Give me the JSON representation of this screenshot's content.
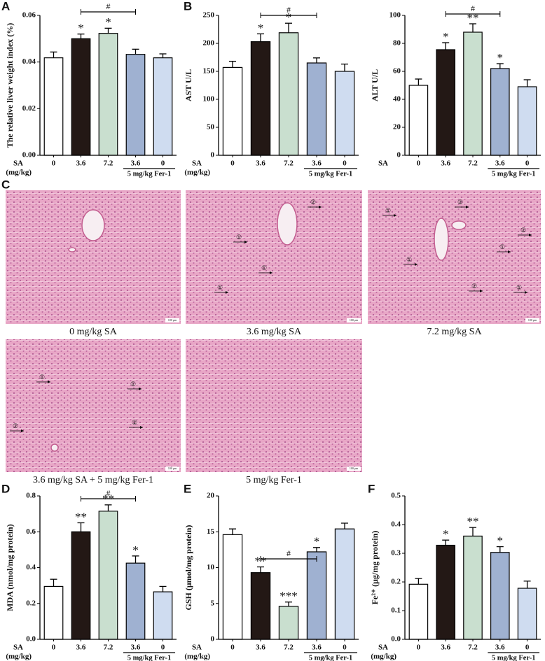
{
  "chart_data": [
    {
      "type": "bar",
      "panel": "A",
      "ylabel": "The relative liver weight index (%)",
      "x_label": "SA",
      "x_unit": "(mg/kg)",
      "categories": [
        "0",
        "3.6",
        "7.2",
        "3.6",
        "0"
      ],
      "values": [
        0.0418,
        0.05,
        0.0523,
        0.0433,
        0.0418
      ],
      "errors": [
        0.0025,
        0.002,
        0.0022,
        0.0022,
        0.0017
      ],
      "colors": [
        "#ffffff",
        "#231815",
        "#c9dfcf",
        "#9fb1d1",
        "#cfdcf0"
      ],
      "significance": [
        null,
        "*",
        "*",
        null,
        null
      ],
      "bracket": {
        "label": "#",
        "from": 1,
        "to": 3
      },
      "group": {
        "label": "5 mg/kg Fer-1",
        "from": 3,
        "to": 4
      },
      "ylim": [
        0,
        0.06
      ],
      "yticks": [
        {
          "value": 0,
          "label": "0.00"
        },
        {
          "value": 0.02,
          "label": "0.02"
        },
        {
          "value": 0.04,
          "label": "0.04"
        },
        {
          "value": 0.06,
          "label": "0.06"
        }
      ]
    },
    {
      "type": "bar",
      "panel": "B",
      "ylabel": "AST U/L",
      "x_label": "SA",
      "x_unit": "(mg/kg)",
      "categories": [
        "0",
        "3.6",
        "7.2",
        "3.6",
        "0"
      ],
      "values": [
        157,
        203,
        219,
        165,
        150
      ],
      "errors": [
        11,
        14,
        17,
        9,
        13
      ],
      "colors": [
        "#ffffff",
        "#231815",
        "#c9dfcf",
        "#9fb1d1",
        "#cfdcf0"
      ],
      "significance": [
        null,
        "*",
        "*",
        null,
        null
      ],
      "bracket": {
        "label": "#",
        "from": 1,
        "to": 3
      },
      "group": {
        "label": "5 mg/kg Fer-1",
        "from": 3,
        "to": 4
      },
      "ylim": [
        0,
        250
      ],
      "yticks": [
        0,
        50,
        100,
        150,
        200,
        250
      ]
    },
    {
      "type": "bar",
      "ylabel": "ALT U/L",
      "x_label": "SA",
      "categories": [
        "0",
        "3.6",
        "7.2",
        "3.6",
        "0"
      ],
      "values": [
        50,
        75.5,
        88,
        62,
        49
      ],
      "errors": [
        4.5,
        5,
        6,
        3.5,
        5
      ],
      "colors": [
        "#ffffff",
        "#231815",
        "#c9dfcf",
        "#9fb1d1",
        "#cfdcf0"
      ],
      "significance": [
        null,
        "*",
        "**",
        "*",
        null
      ],
      "bracket": {
        "label": "#",
        "from": 1,
        "to": 3
      },
      "group": {
        "label": "5 mg/kg Fer-1",
        "from": 3,
        "to": 4
      },
      "ylim": [
        0,
        100
      ],
      "yticks": [
        0,
        20,
        40,
        60,
        80,
        100
      ]
    },
    {
      "type": "bar",
      "panel": "D",
      "ylabel": "MDA (nmol/mg protein)",
      "x_label": "SA",
      "x_unit": "(mg/kg)",
      "categories": [
        "0",
        "3.6",
        "7.2",
        "3.6",
        "0"
      ],
      "values": [
        0.295,
        0.6,
        0.715,
        0.425,
        0.265
      ],
      "errors": [
        0.04,
        0.05,
        0.035,
        0.04,
        0.03
      ],
      "colors": [
        "#ffffff",
        "#231815",
        "#c9dfcf",
        "#9fb1d1",
        "#cfdcf0"
      ],
      "significance": [
        null,
        "**",
        "**",
        "*",
        null
      ],
      "bracket": {
        "label": "#",
        "from": 1,
        "to": 3
      },
      "group": {
        "label": "5 mg/kg Fer-1",
        "from": 3,
        "to": 4
      },
      "ylim": [
        0,
        0.8
      ],
      "yticks": [
        {
          "value": 0,
          "label": "0.0"
        },
        {
          "value": 0.2,
          "label": "0.2"
        },
        {
          "value": 0.4,
          "label": "0.4"
        },
        {
          "value": 0.6,
          "label": "0.6"
        },
        {
          "value": 0.8,
          "label": "0.8"
        }
      ]
    },
    {
      "type": "bar",
      "panel": "E",
      "ylabel": "GSH (μmol/mg protein)",
      "x_label": "SA",
      "x_unit": "(mg/kg)",
      "categories": [
        "0",
        "3.6",
        "7.2",
        "3.6",
        "0"
      ],
      "values": [
        14.6,
        9.3,
        4.6,
        12.2,
        15.4
      ],
      "errors": [
        0.8,
        0.8,
        0.6,
        0.6,
        0.8
      ],
      "colors": [
        "#ffffff",
        "#231815",
        "#c9dfcf",
        "#9fb1d1",
        "#cfdcf0"
      ],
      "significance": [
        null,
        "**",
        "***",
        "*",
        null
      ],
      "bracket": {
        "label": "#",
        "from": 1,
        "to": 3
      },
      "group": {
        "label": "5 mg/kg Fer-1",
        "from": 3,
        "to": 4
      },
      "ylim": [
        0,
        20
      ],
      "yticks": [
        0,
        5,
        10,
        15,
        20
      ]
    },
    {
      "type": "bar",
      "panel": "F",
      "ylabel": "Fe²⁺ (μg/mg protein)",
      "x_label": "SA",
      "x_unit": "(mg/kg)",
      "categories": [
        "0",
        "3.6",
        "7.2",
        "3.6",
        "0"
      ],
      "values": [
        0.192,
        0.328,
        0.36,
        0.303,
        0.178
      ],
      "errors": [
        0.02,
        0.018,
        0.03,
        0.02,
        0.025
      ],
      "colors": [
        "#ffffff",
        "#231815",
        "#c9dfcf",
        "#9fb1d1",
        "#cfdcf0"
      ],
      "significance": [
        null,
        "*",
        "**",
        "*",
        null
      ],
      "group": {
        "label": "5 mg/kg Fer-1",
        "from": 3,
        "to": 4
      },
      "ylim": [
        0,
        0.5
      ],
      "yticks": [
        {
          "value": 0,
          "label": "0.0"
        },
        {
          "value": 0.1,
          "label": "0.1"
        },
        {
          "value": 0.2,
          "label": "0.2"
        },
        {
          "value": 0.3,
          "label": "0.3"
        },
        {
          "value": 0.4,
          "label": "0.4"
        },
        {
          "value": 0.5,
          "label": "0.5"
        }
      ]
    }
  ],
  "histology": {
    "panel": "C",
    "images": [
      {
        "caption": "0 mg/kg SA",
        "markers": [],
        "scale_bar": "100 μm"
      },
      {
        "caption": "3.6 mg/kg SA",
        "markers": [
          "②",
          "①",
          "①",
          "①"
        ],
        "scale_bar": "100 μm"
      },
      {
        "caption": "7.2  mg/kg SA",
        "markers": [
          "②",
          "①",
          "②",
          "①",
          "①",
          "②",
          "①"
        ],
        "scale_bar": "100 μm"
      },
      {
        "caption": "3.6 mg/kg SA + 5 mg/kg Fer-1",
        "markers": [
          "①",
          "①",
          "②",
          "②"
        ],
        "scale_bar": "100 μm"
      },
      {
        "caption": "5 mg/kg Fer-1",
        "markers": [],
        "scale_bar": "100 μm"
      }
    ]
  }
}
